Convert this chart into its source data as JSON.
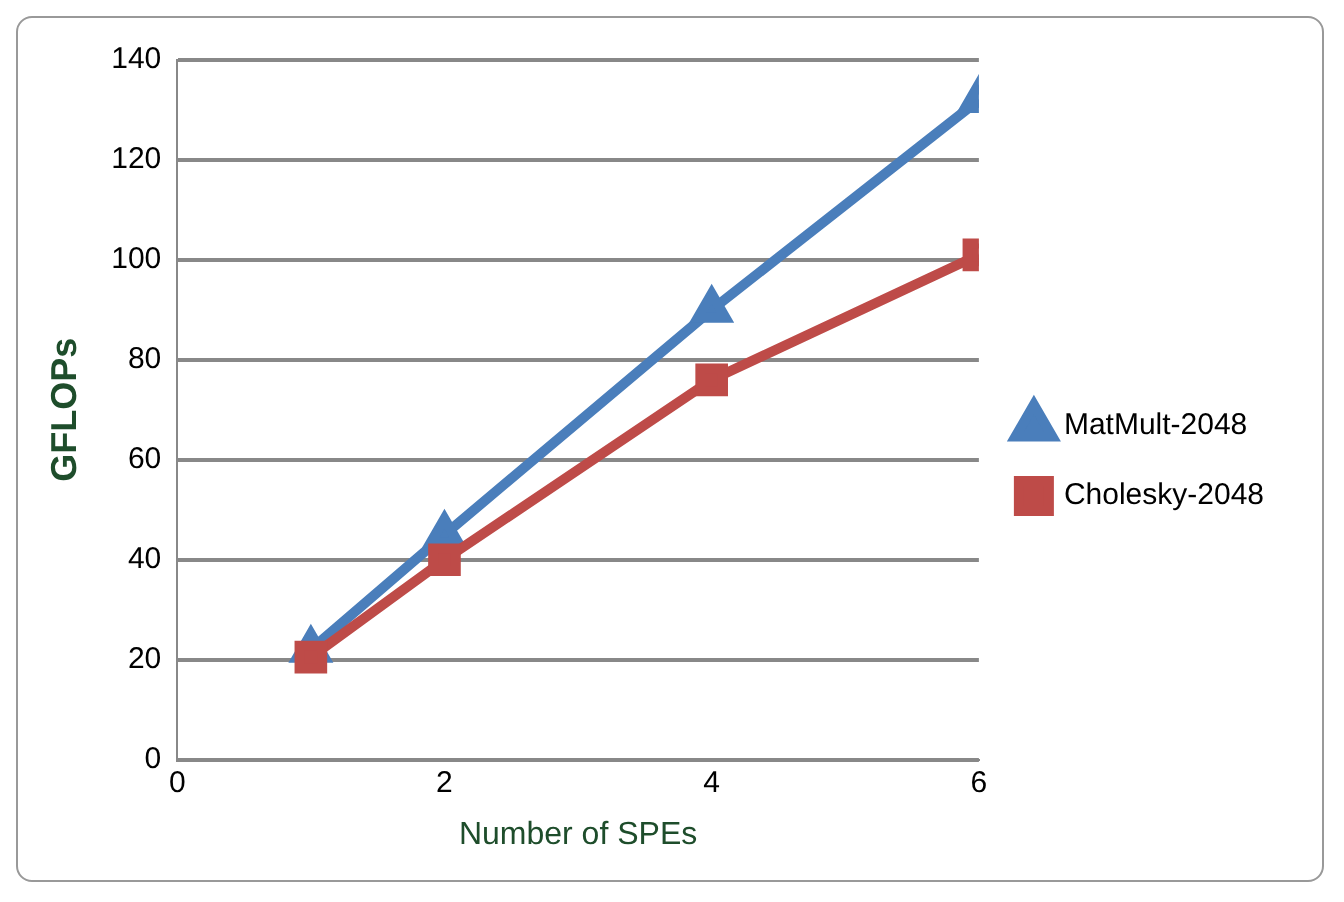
{
  "chart_data": {
    "type": "line",
    "xlabel": "Number of SPEs",
    "ylabel": "GFLOPs",
    "x": [
      1,
      2,
      4,
      6
    ],
    "series": [
      {
        "name": "MatMult-2048",
        "color": "#4a7ebb",
        "values": [
          22,
          45,
          90,
          132
        ],
        "marker": "triangle"
      },
      {
        "name": "Cholesky-2048",
        "color": "#be4b48",
        "values": [
          20.5,
          40,
          76,
          101
        ],
        "marker": "square"
      }
    ],
    "xlim": [
      0,
      6
    ],
    "xticks": [
      0,
      2,
      4,
      6
    ],
    "ylim": [
      0,
      140
    ],
    "yticks": [
      0,
      20,
      40,
      60,
      80,
      100,
      120,
      140
    ],
    "grid": "y",
    "legend": "right",
    "line_style": "solid"
  }
}
